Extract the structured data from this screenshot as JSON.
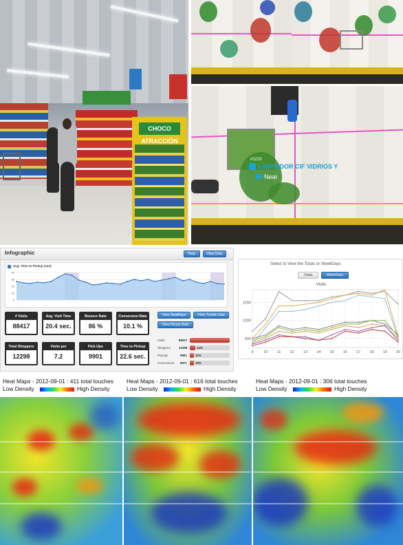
{
  "store_photo": {
    "endcap_sign": "CHOCO ATRACCIÓN"
  },
  "tracking": {
    "item_id": "#1223",
    "item_name": "LIMPIADOR CIF VIDRIOS Y",
    "proximity": "Near"
  },
  "infographic": {
    "title": "Infographic",
    "help_button": "Help",
    "view_data_button": "View Data",
    "chart_title": "Avg. Time to Pickup (sec)",
    "chart_y_ticks": [
      "40",
      "30",
      "20",
      "10",
      "0"
    ],
    "chart_values": [
      27,
      25,
      24,
      26,
      25,
      27,
      33,
      38,
      36,
      29,
      26,
      22,
      23,
      25,
      24,
      23,
      27,
      30,
      28,
      30,
      27,
      29,
      31,
      33,
      28,
      30,
      26,
      24,
      27,
      24,
      23
    ],
    "stats": [
      {
        "label": "# Visits",
        "value": "88417"
      },
      {
        "label": "Avg. Visit Time",
        "value": "20.4 sec."
      },
      {
        "label": "Bounce Rate",
        "value": "86 %"
      },
      {
        "label": "Conversion Rate",
        "value": "10.1 %"
      },
      {
        "label": "Total Shoppers",
        "value": "12298"
      },
      {
        "label": "Visits per Shopper",
        "value": "7.2"
      },
      {
        "label": "Pick Ups",
        "value": "9901"
      },
      {
        "label": "Time to Pickup",
        "value": "22.6 sec."
      }
    ],
    "view_buttons": [
      "View HeatMaps",
      "View Transit Data",
      "View Hourly Data"
    ],
    "funnel": [
      {
        "label": "Visits",
        "value": "88417",
        "pct": 100
      },
      {
        "label": "Shoppers",
        "value": "12298",
        "pct": 14
      },
      {
        "label": "Pickups",
        "value": "9901",
        "pct": 11
      },
      {
        "label": "Conversions",
        "value": "8971",
        "pct": 10
      }
    ],
    "funnel_pcts": [
      "",
      "14%",
      "11%",
      "10%"
    ]
  },
  "weekdays_chart": {
    "prompt": "Select to View the Totals or WeekDays",
    "totals_button": "Totals",
    "weekdays_button": "WeekDays",
    "chart_title": "Visits",
    "y_ticks": [
      "1500",
      "1000",
      "500"
    ],
    "x_ticks": [
      "9",
      "10",
      "11",
      "12",
      "13",
      "14",
      "15",
      "16",
      "17",
      "18",
      "19",
      "20"
    ]
  },
  "chart_data": {
    "type": "line",
    "title": "Visits",
    "x": [
      9,
      10,
      11,
      12,
      13,
      14,
      15,
      16,
      17,
      18,
      19,
      20
    ],
    "ylim": [
      250,
      1850
    ],
    "series": [
      {
        "color": "#9aa0aa",
        "values": [
          700,
          1050,
          1800,
          1550,
          1550,
          1550,
          1650,
          1700,
          1800,
          1750,
          1800,
          1450
        ]
      },
      {
        "color": "#e0b860",
        "values": [
          500,
          900,
          1400,
          1400,
          1450,
          1500,
          1600,
          1700,
          1750,
          1700,
          1850,
          550
        ]
      },
      {
        "color": "#9bc0dc",
        "values": [
          350,
          800,
          1250,
          1250,
          1300,
          1400,
          1500,
          1550,
          1700,
          1650,
          1600,
          500
        ]
      },
      {
        "color": "#8f8f8f",
        "values": [
          500,
          600,
          850,
          750,
          800,
          750,
          850,
          950,
          950,
          1000,
          900,
          600
        ]
      },
      {
        "color": "#8fbf5a",
        "values": [
          450,
          550,
          800,
          700,
          750,
          700,
          800,
          900,
          900,
          1000,
          1000,
          550
        ]
      },
      {
        "color": "#e2a45a",
        "values": [
          400,
          500,
          700,
          650,
          700,
          650,
          750,
          850,
          800,
          900,
          850,
          500
        ]
      },
      {
        "color": "#a06cc0",
        "values": [
          350,
          450,
          600,
          550,
          550,
          450,
          600,
          750,
          700,
          800,
          850,
          450
        ]
      },
      {
        "color": "#c04a4a",
        "values": [
          300,
          400,
          550,
          550,
          500,
          450,
          500,
          700,
          650,
          750,
          700,
          400
        ]
      }
    ]
  },
  "heatmaps": [
    {
      "title": "Heat Maps - 2012-09-01 : 411 total touches",
      "low": "Low Density",
      "high": "High Density"
    },
    {
      "title": "Heat Maps - 2012-09-01 : 616 total touches",
      "low": "Low Density",
      "high": "High Density"
    },
    {
      "title": "Heat Maps - 2012-09-01 : 306 total touches",
      "low": "Low Density",
      "high": "High Density"
    }
  ]
}
